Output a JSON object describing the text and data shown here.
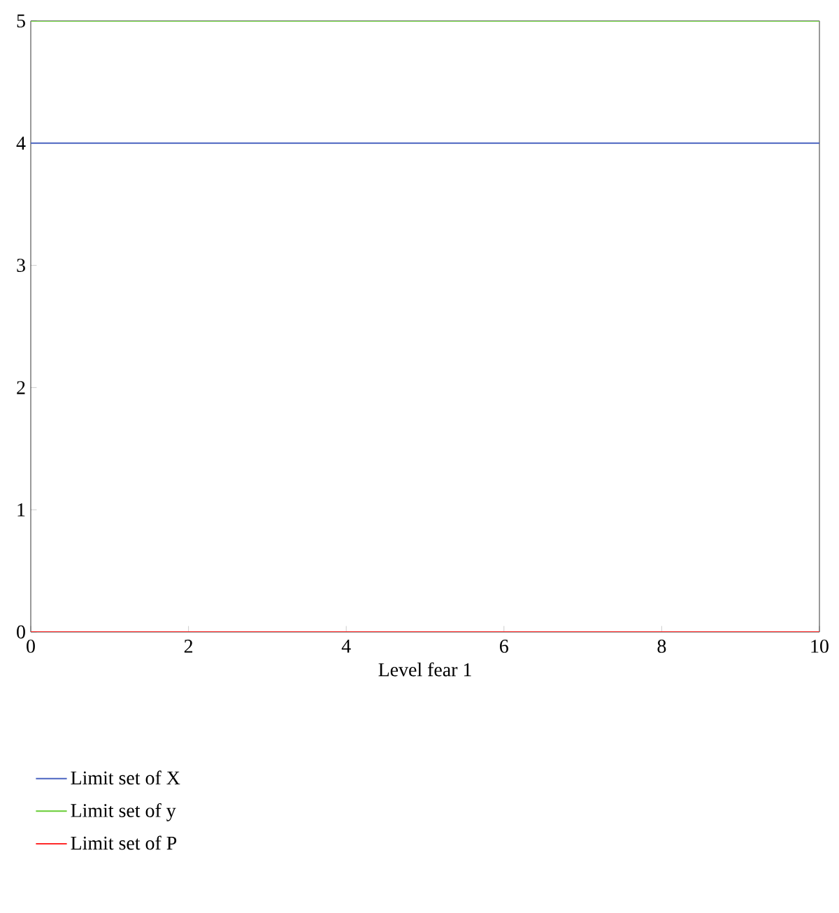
{
  "chart_data": {
    "type": "line",
    "xlabel": "Level fear 1",
    "x": [
      0,
      10
    ],
    "series": [
      {
        "name": "Limit set of X",
        "color": "#4a63c0",
        "values": [
          4,
          4
        ]
      },
      {
        "name": "Limit set of y",
        "color": "#66cc33",
        "values": [
          5,
          5
        ]
      },
      {
        "name": "Limit set of P",
        "color": "#ff2a2a",
        "values": [
          0,
          0
        ]
      }
    ],
    "xlim": [
      0,
      10
    ],
    "ylim": [
      0,
      5
    ],
    "xticks": [
      0,
      2,
      4,
      6,
      8,
      10
    ],
    "yticks": [
      0,
      1,
      2,
      3,
      4,
      5
    ],
    "legend": "bottom",
    "grid": false,
    "marker": "none",
    "line_style": "solid"
  }
}
